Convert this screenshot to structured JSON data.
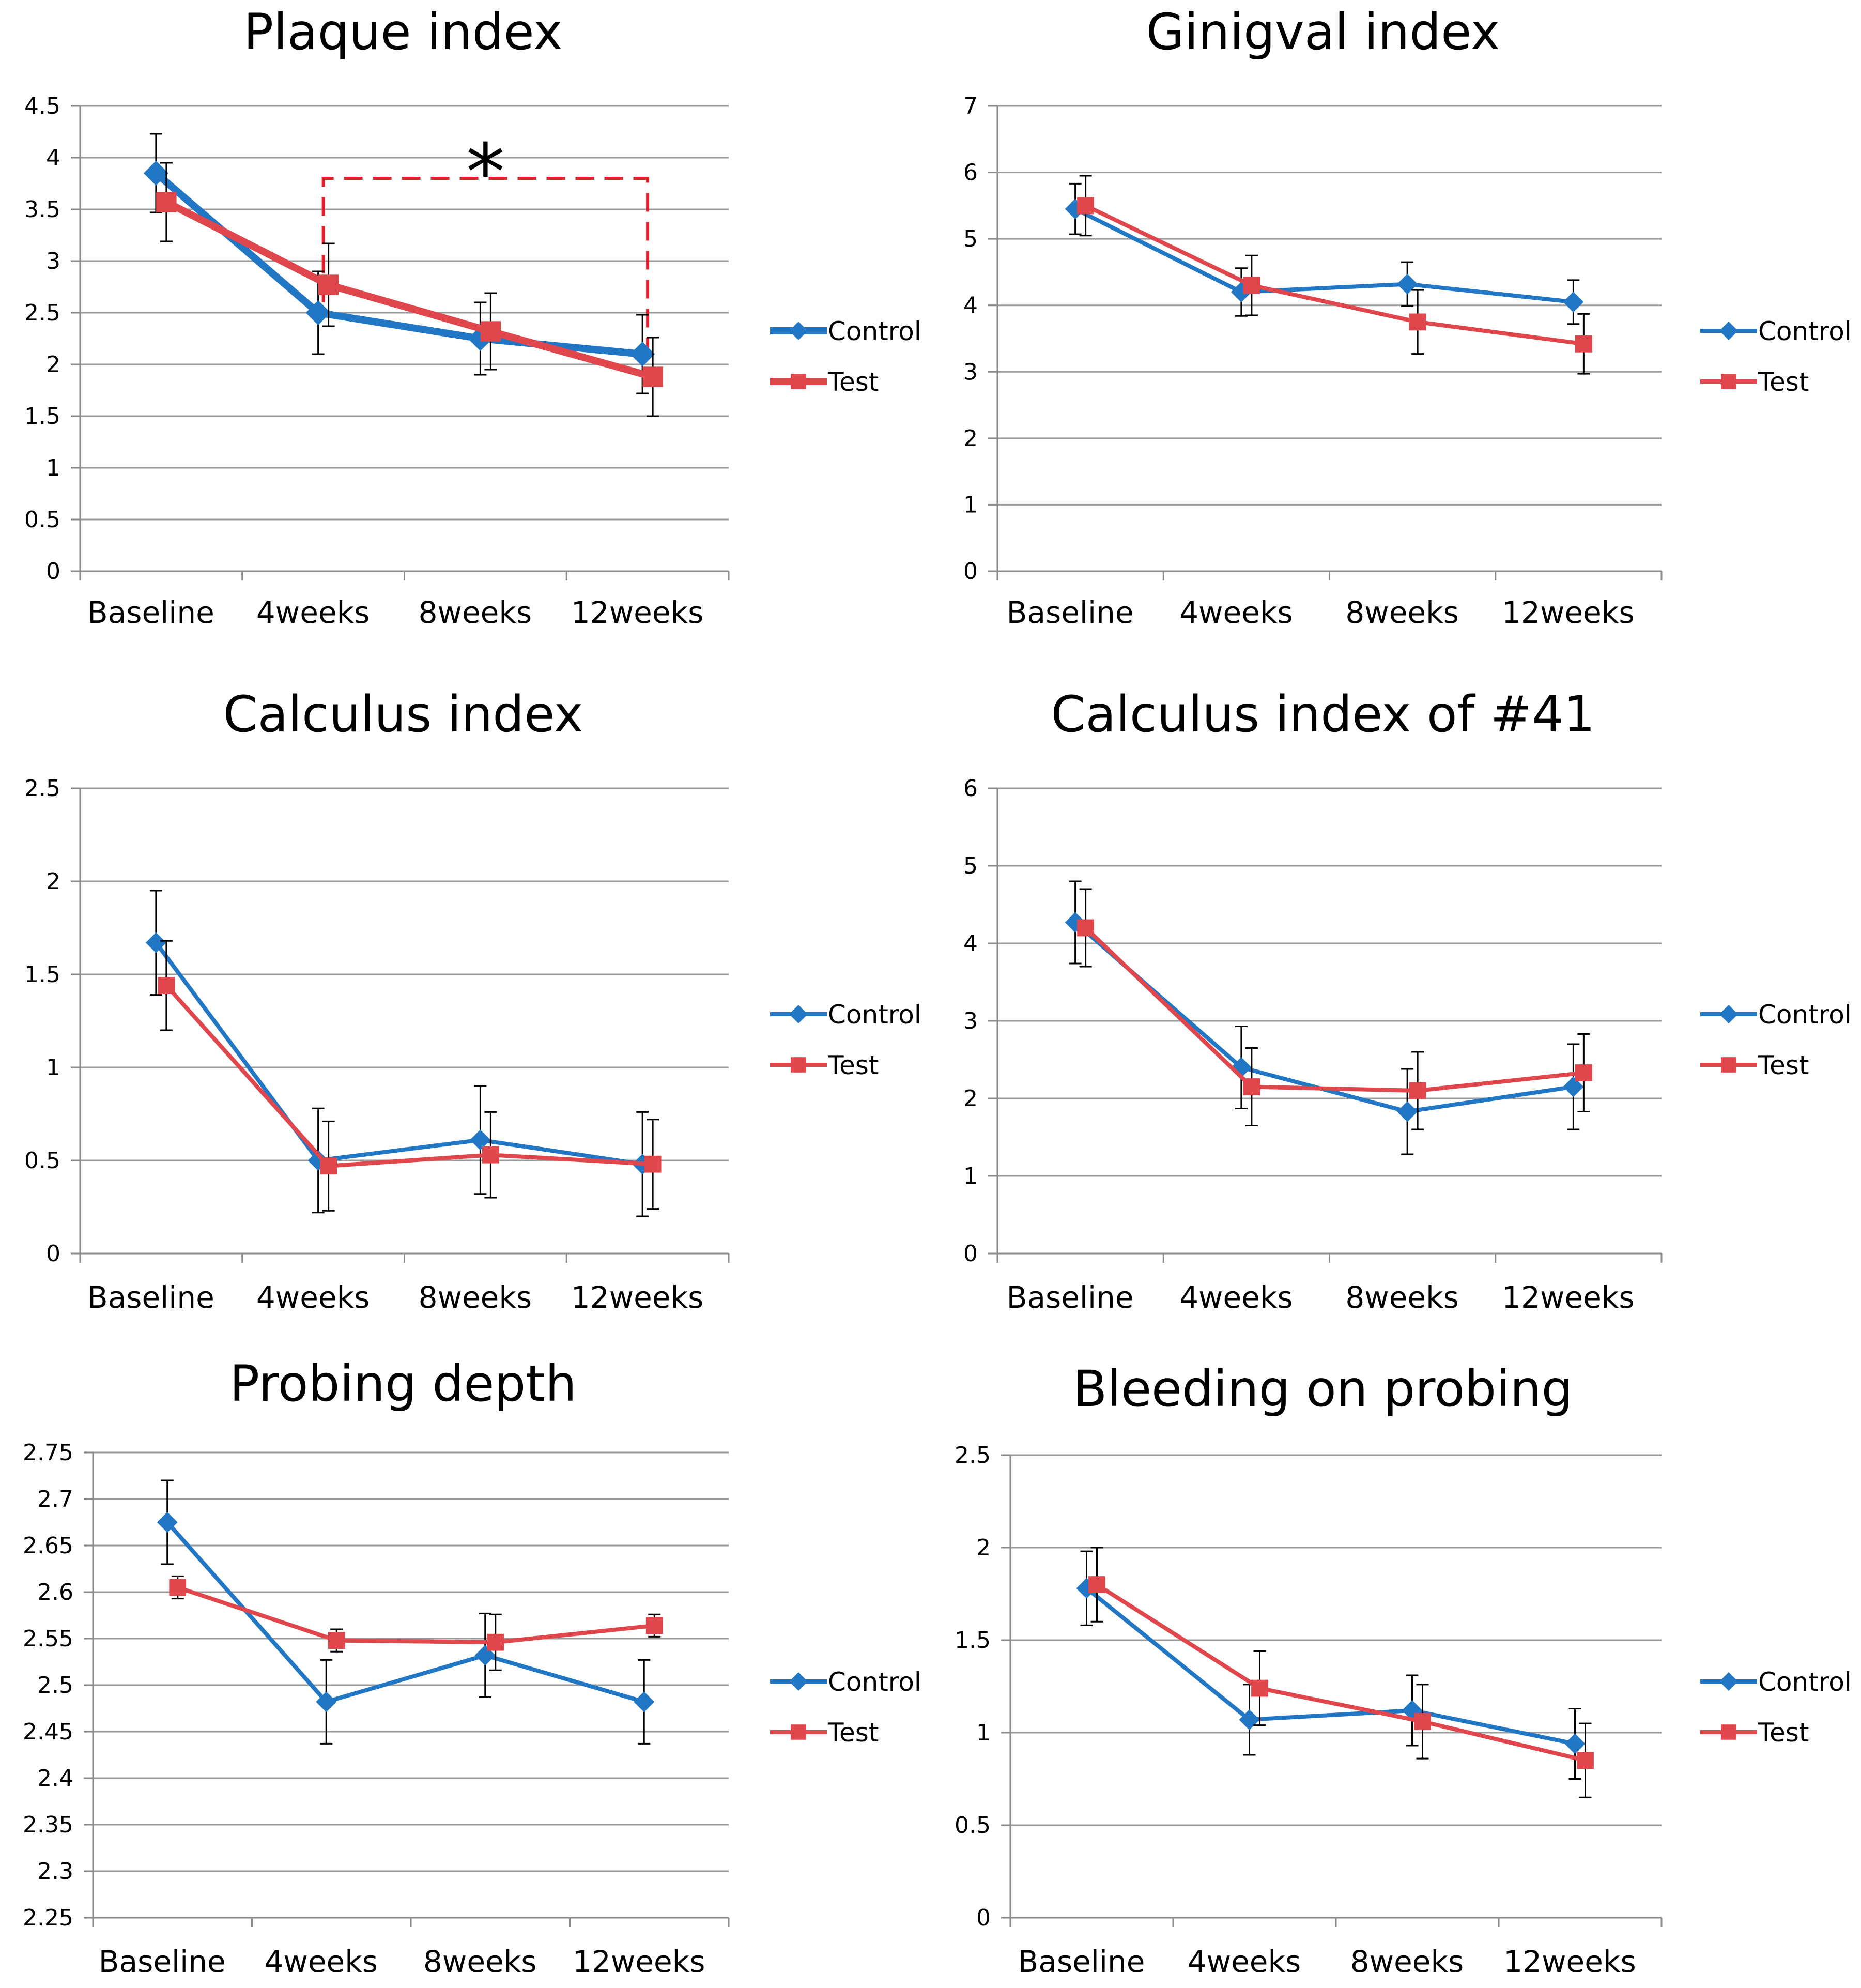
{
  "colors": {
    "control": "#2277c4",
    "test": "#e0474c",
    "grid": "#9a9a9a",
    "axis": "#8a8a8a",
    "annotation": "#e0202a",
    "errorbar": "#000000"
  },
  "chart_data": [
    {
      "type": "line",
      "title": "Plaque index",
      "categories": [
        "Baseline",
        "4weeks",
        "8weeks",
        "12weeks"
      ],
      "ylim": [
        0,
        4.5
      ],
      "ystep": 0.5,
      "yticks": [
        "0",
        "0.5",
        "1",
        "1.5",
        "2",
        "2.5",
        "3",
        "3.5",
        "4",
        "4.5"
      ],
      "heavy": true,
      "series": [
        {
          "name": "Control",
          "values": [
            3.85,
            2.5,
            2.25,
            2.1
          ],
          "errors": [
            0.38,
            0.4,
            0.35,
            0.38
          ]
        },
        {
          "name": "Test",
          "values": [
            3.57,
            2.77,
            2.32,
            1.88
          ],
          "errors": [
            0.38,
            0.4,
            0.37,
            0.38
          ]
        }
      ],
      "annotation": {
        "label": "*",
        "from_category": 1,
        "to_category": 3,
        "level": 3.8
      }
    },
    {
      "type": "line",
      "title": "Ginigval index",
      "categories": [
        "Baseline",
        "4weeks",
        "8weeks",
        "12weeks"
      ],
      "ylim": [
        0,
        7
      ],
      "ystep": 1,
      "yticks": [
        "0",
        "1",
        "2",
        "3",
        "4",
        "5",
        "6",
        "7"
      ],
      "series": [
        {
          "name": "Control",
          "values": [
            5.45,
            4.2,
            4.32,
            4.05
          ],
          "errors": [
            0.38,
            0.36,
            0.33,
            0.33
          ]
        },
        {
          "name": "Test",
          "values": [
            5.5,
            4.3,
            3.75,
            3.42
          ],
          "errors": [
            0.45,
            0.45,
            0.48,
            0.45
          ]
        }
      ]
    },
    {
      "type": "line",
      "title": "Calculus index",
      "categories": [
        "Baseline",
        "4weeks",
        "8weeks",
        "12weeks"
      ],
      "ylim": [
        0,
        2.5
      ],
      "ystep": 0.5,
      "yticks": [
        "0",
        "0.5",
        "1",
        "1.5",
        "2",
        "2.5"
      ],
      "series": [
        {
          "name": "Control",
          "values": [
            1.67,
            0.5,
            0.61,
            0.48
          ],
          "errors": [
            0.28,
            0.28,
            0.29,
            0.28
          ]
        },
        {
          "name": "Test",
          "values": [
            1.44,
            0.47,
            0.53,
            0.48
          ],
          "errors": [
            0.24,
            0.24,
            0.23,
            0.24
          ]
        }
      ]
    },
    {
      "type": "line",
      "title": "Calculus index of #41",
      "categories": [
        "Baseline",
        "4weeks",
        "8weeks",
        "12weeks"
      ],
      "ylim": [
        0,
        6
      ],
      "ystep": 1,
      "yticks": [
        "0",
        "1",
        "2",
        "3",
        "4",
        "5",
        "6"
      ],
      "series": [
        {
          "name": "Control",
          "values": [
            4.27,
            2.4,
            1.83,
            2.15
          ],
          "errors": [
            0.53,
            0.53,
            0.55,
            0.55
          ]
        },
        {
          "name": "Test",
          "values": [
            4.2,
            2.15,
            2.1,
            2.33
          ],
          "errors": [
            0.5,
            0.5,
            0.5,
            0.5
          ]
        }
      ]
    },
    {
      "type": "line",
      "title": "Probing depth",
      "categories": [
        "Baseline",
        "4weeks",
        "8weeks",
        "12weeks"
      ],
      "ylim": [
        2.25,
        2.75
      ],
      "ystep": 0.05,
      "yticks": [
        "2.25",
        "2.3",
        "2.35",
        "2.4",
        "2.45",
        "2.5",
        "2.55",
        "2.6",
        "2.65",
        "2.7",
        "2.75"
      ],
      "series": [
        {
          "name": "Control",
          "values": [
            2.675,
            2.482,
            2.532,
            2.482
          ],
          "errors": [
            0.045,
            0.045,
            0.045,
            0.045
          ]
        },
        {
          "name": "Test",
          "values": [
            2.605,
            2.548,
            2.546,
            2.564
          ],
          "errors": [
            0.012,
            0.012,
            0.03,
            0.012
          ]
        }
      ]
    },
    {
      "type": "line",
      "title": "Bleeding on probing",
      "categories": [
        "Baseline",
        "4weeks",
        "8weeks",
        "12weeks"
      ],
      "ylim": [
        0,
        2.5
      ],
      "ystep": 0.5,
      "yticks": [
        "0",
        "0.5",
        "1",
        "1.5",
        "2",
        "2.5"
      ],
      "series": [
        {
          "name": "Control",
          "values": [
            1.78,
            1.07,
            1.12,
            0.94
          ],
          "errors": [
            0.2,
            0.19,
            0.19,
            0.19
          ]
        },
        {
          "name": "Test",
          "values": [
            1.8,
            1.24,
            1.06,
            0.85
          ],
          "errors": [
            0.2,
            0.2,
            0.2,
            0.2
          ]
        }
      ]
    }
  ]
}
